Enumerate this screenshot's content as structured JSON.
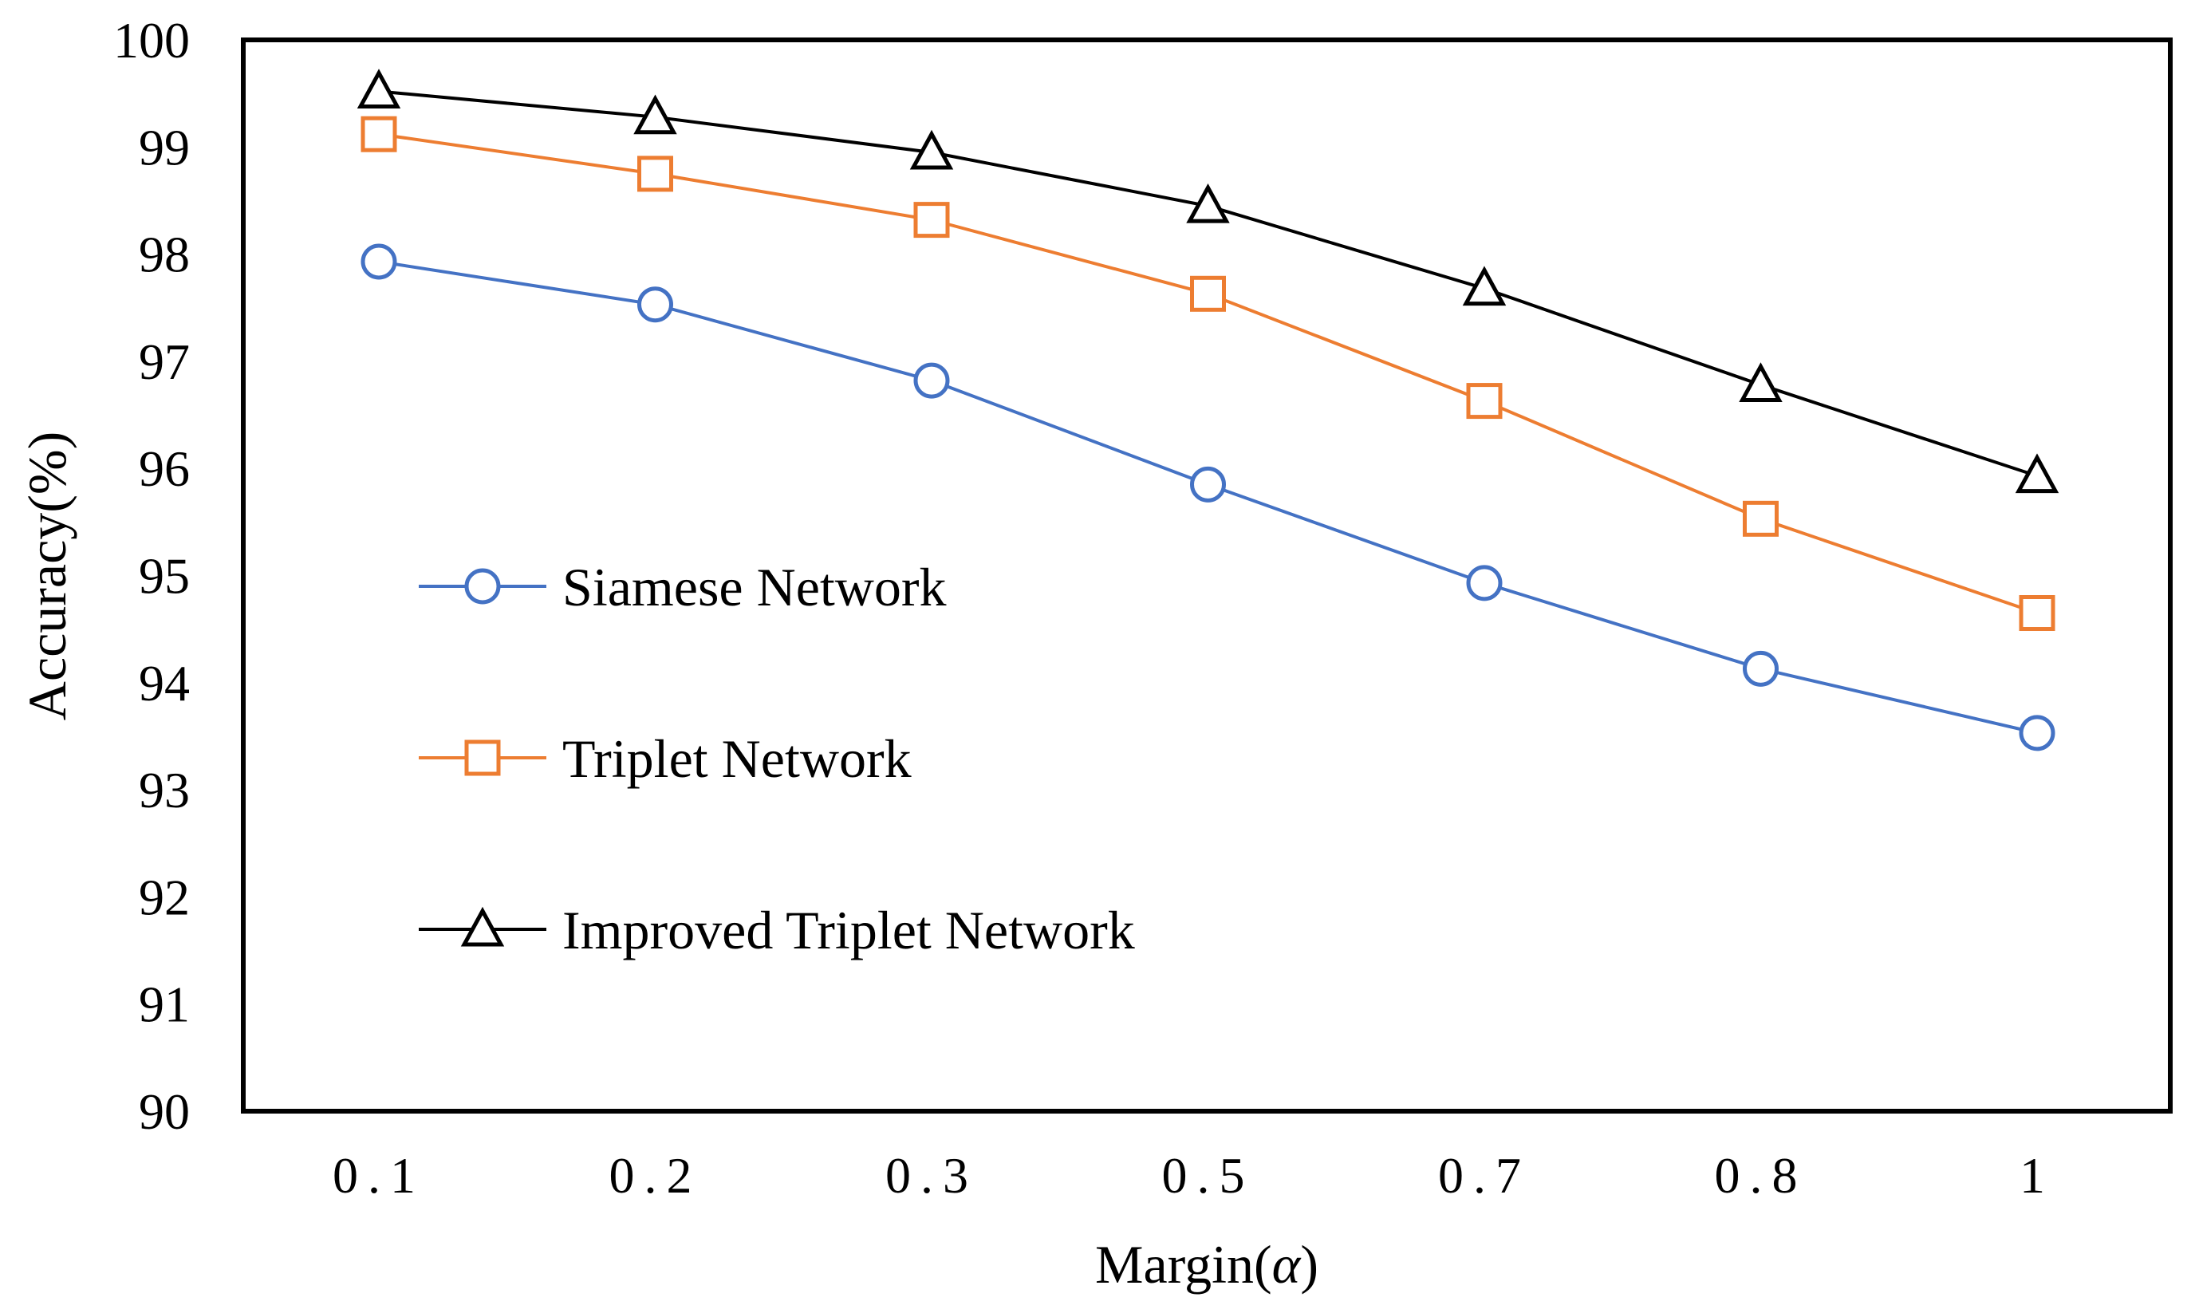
{
  "chart_data": {
    "type": "line",
    "title": "",
    "xlabel_prefix": "Margin(",
    "xlabel_symbol": "α",
    "xlabel_suffix": ")",
    "ylabel": "Accuracy(%)",
    "categories": [
      "0.1",
      "0.2",
      "0.3",
      "0.5",
      "0.7",
      "0.8",
      "1"
    ],
    "ylim": [
      90,
      100
    ],
    "yticks": [
      "90",
      "91",
      "92",
      "93",
      "94",
      "95",
      "96",
      "97",
      "98",
      "99",
      "100"
    ],
    "grid": false,
    "legend_position": "left-inside",
    "series": [
      {
        "name": "Siamese Network",
        "marker": "circle",
        "color": "#4472C4",
        "values": [
          97.93,
          97.53,
          96.82,
          95.85,
          94.93,
          94.13,
          93.53
        ]
      },
      {
        "name": "Triplet Network",
        "marker": "square",
        "color": "#ED7D31",
        "values": [
          99.12,
          98.75,
          98.32,
          97.63,
          96.63,
          95.53,
          94.65
        ]
      },
      {
        "name": "Improved Triplet Network",
        "marker": "triangle",
        "color": "#000000",
        "values": [
          99.52,
          99.28,
          98.95,
          98.45,
          97.68,
          96.78,
          95.93
        ]
      }
    ]
  }
}
